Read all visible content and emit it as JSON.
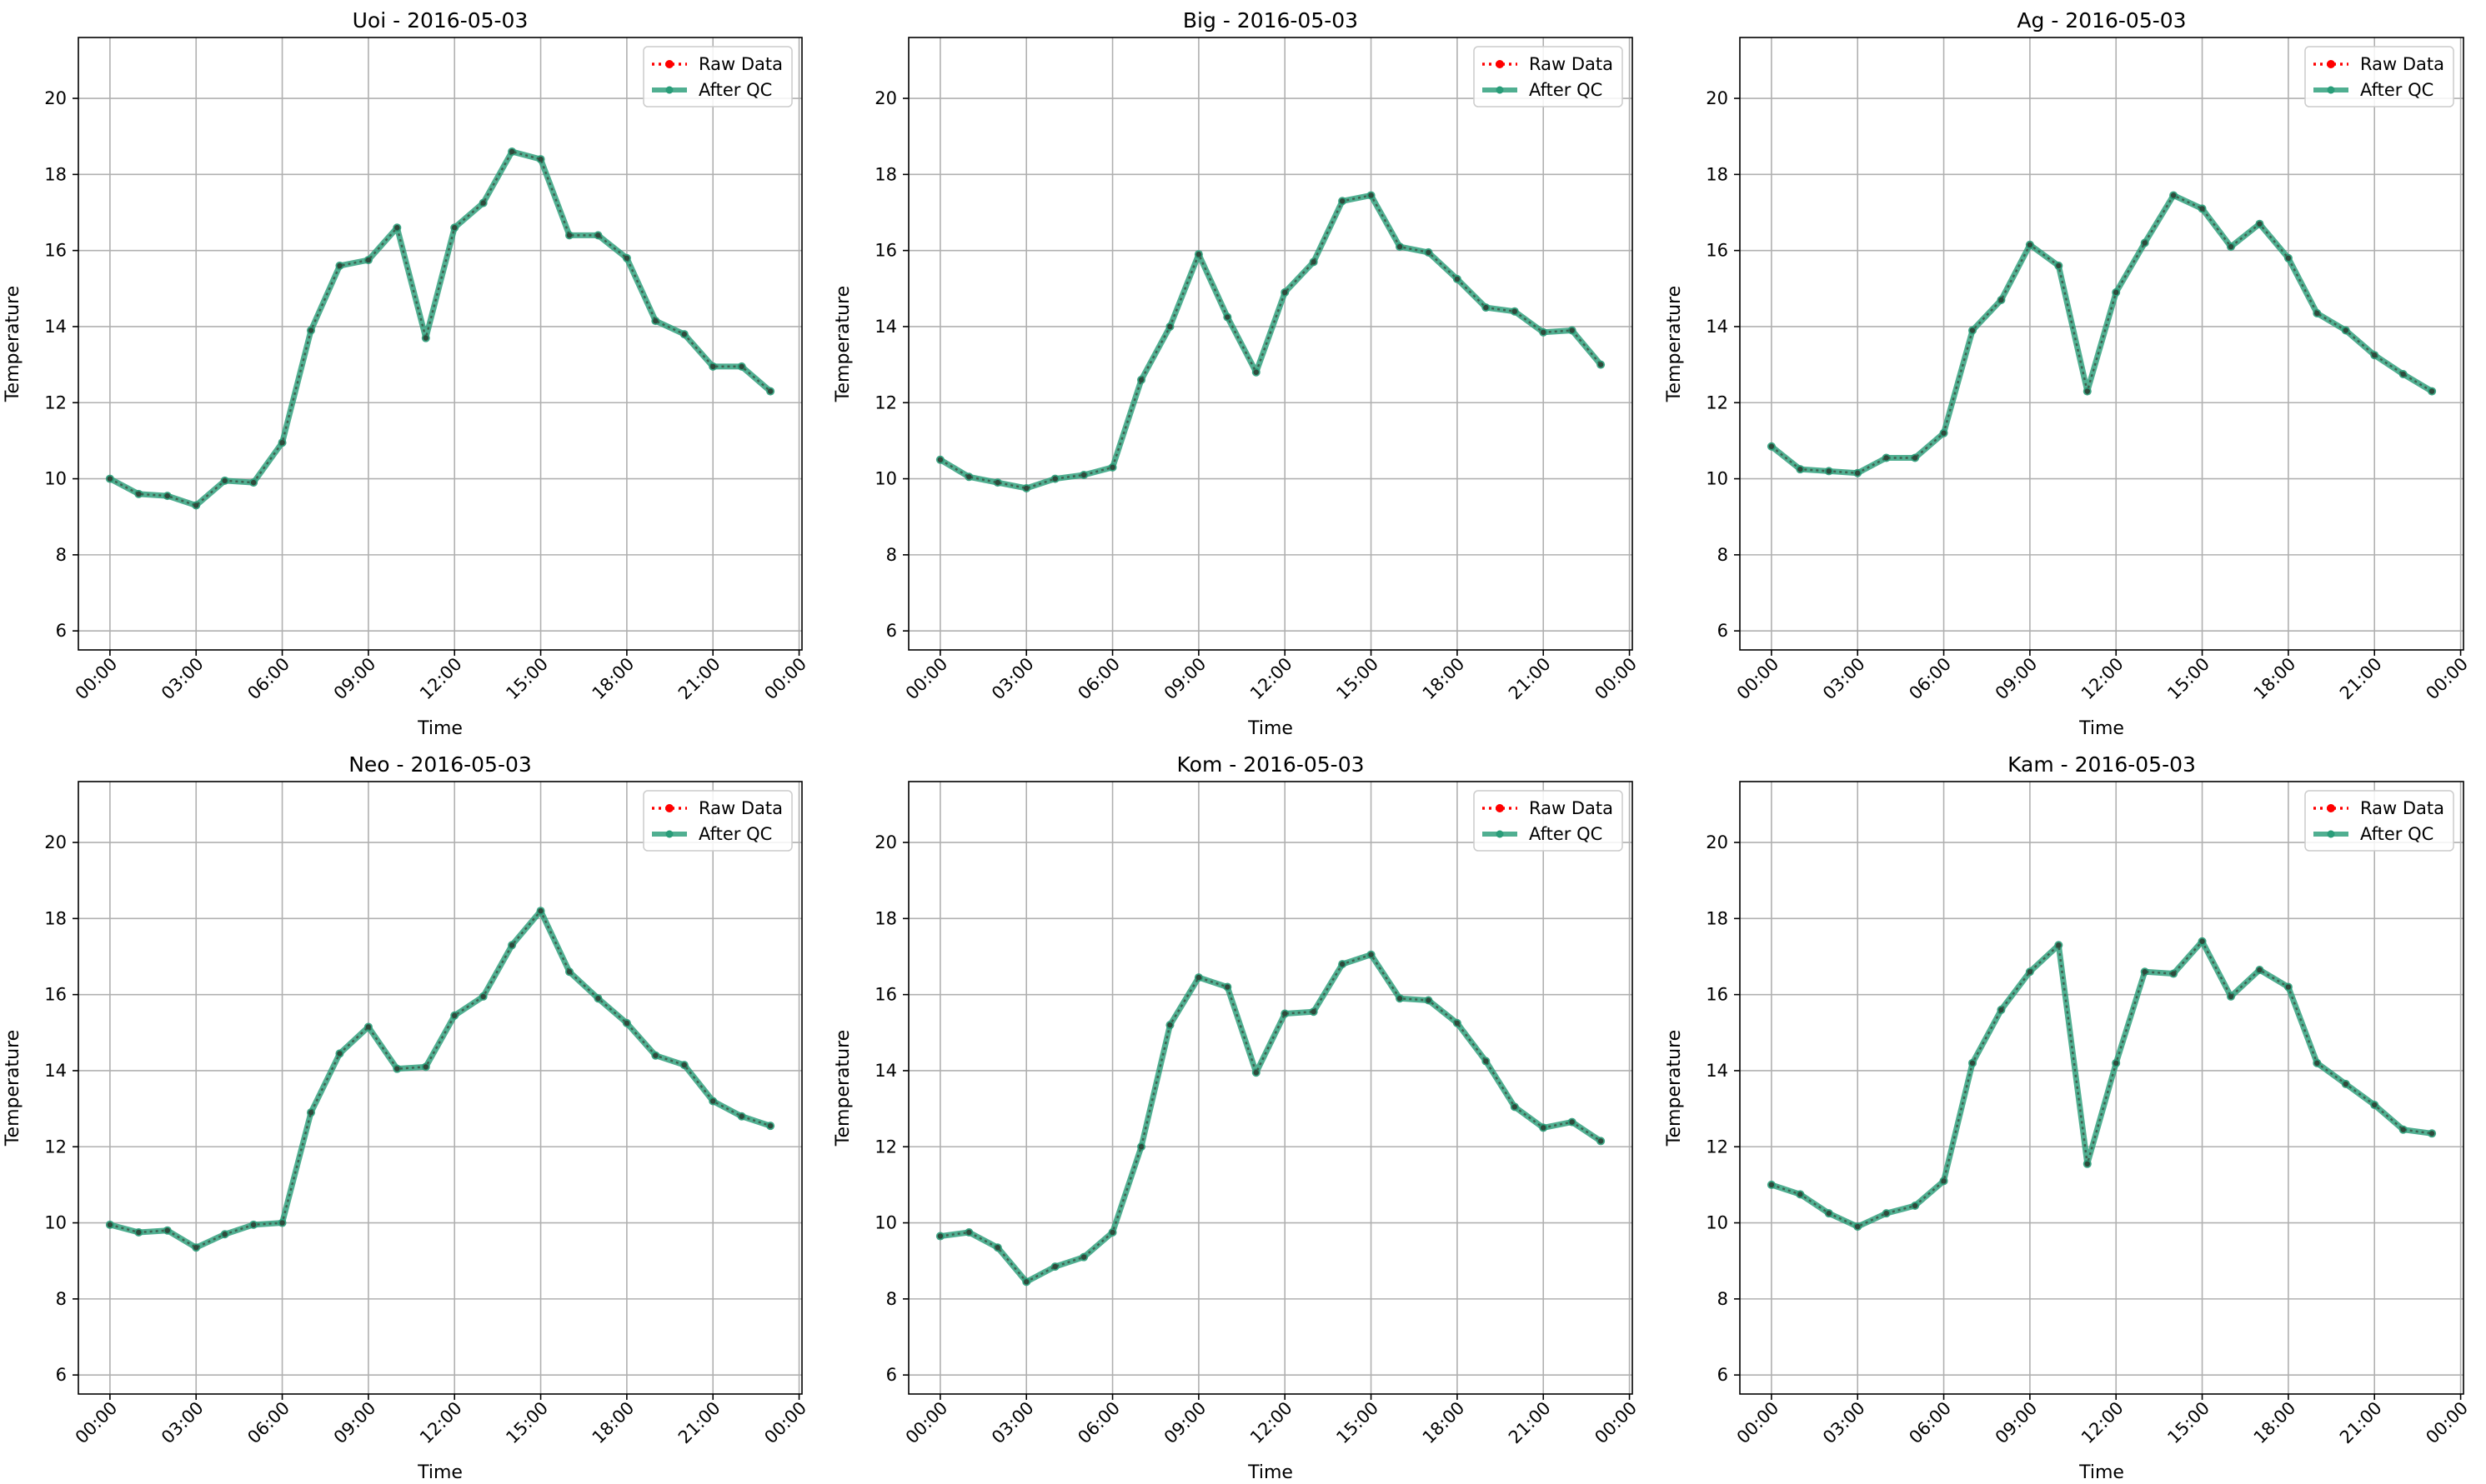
{
  "chart_data": [
    {
      "type": "line",
      "title": "Uoi - 2016-05-03",
      "xlabel": "Time",
      "ylabel": "Temperature",
      "x_ticks": [
        "00:00",
        "03:00",
        "06:00",
        "09:00",
        "12:00",
        "15:00",
        "18:00",
        "21:00",
        "00:00"
      ],
      "y_ticks": [
        6,
        8,
        10,
        12,
        14,
        16,
        18,
        20
      ],
      "ylim": [
        5.5,
        21.6
      ],
      "xlim_hours": [
        -1.1,
        24.1
      ],
      "legend": {
        "position": "top-right",
        "entries": [
          "Raw Data",
          "After QC"
        ]
      },
      "series": [
        {
          "name": "Raw Data",
          "color": "#ff0000",
          "values": [
            10.0,
            9.6,
            9.55,
            9.3,
            9.95,
            9.9,
            10.95,
            13.9,
            15.6,
            15.75,
            16.6,
            13.7,
            16.6,
            17.25,
            18.6,
            18.4,
            16.4,
            16.4,
            15.8,
            14.15,
            13.8,
            12.95,
            12.95,
            12.3
          ]
        },
        {
          "name": "After QC",
          "color": "#2a9d79",
          "values": [
            10.0,
            9.6,
            9.55,
            9.3,
            9.95,
            9.9,
            10.95,
            13.9,
            15.6,
            15.75,
            16.6,
            13.7,
            16.6,
            17.25,
            18.6,
            18.4,
            16.4,
            16.4,
            15.8,
            14.15,
            13.8,
            12.95,
            12.95,
            12.3
          ]
        }
      ]
    },
    {
      "type": "line",
      "title": "Big - 2016-05-03",
      "xlabel": "Time",
      "ylabel": "Temperature",
      "x_ticks": [
        "00:00",
        "03:00",
        "06:00",
        "09:00",
        "12:00",
        "15:00",
        "18:00",
        "21:00",
        "00:00"
      ],
      "y_ticks": [
        6,
        8,
        10,
        12,
        14,
        16,
        18,
        20
      ],
      "ylim": [
        5.5,
        21.6
      ],
      "xlim_hours": [
        -1.1,
        24.1
      ],
      "legend": {
        "position": "top-right",
        "entries": [
          "Raw Data",
          "After QC"
        ]
      },
      "series": [
        {
          "name": "Raw Data",
          "color": "#ff0000",
          "values": [
            10.5,
            10.05,
            9.9,
            9.75,
            10.0,
            10.1,
            10.3,
            12.6,
            14.0,
            15.9,
            14.25,
            12.8,
            14.9,
            15.7,
            17.3,
            17.45,
            16.1,
            15.95,
            15.25,
            14.5,
            14.4,
            13.85,
            13.9,
            13.0
          ]
        },
        {
          "name": "After QC",
          "color": "#2a9d79",
          "values": [
            10.5,
            10.05,
            9.9,
            9.75,
            10.0,
            10.1,
            10.3,
            12.6,
            14.0,
            15.9,
            14.25,
            12.8,
            14.9,
            15.7,
            17.3,
            17.45,
            16.1,
            15.95,
            15.25,
            14.5,
            14.4,
            13.85,
            13.9,
            13.0
          ]
        }
      ]
    },
    {
      "type": "line",
      "title": "Ag - 2016-05-03",
      "xlabel": "Time",
      "ylabel": "Temperature",
      "x_ticks": [
        "00:00",
        "03:00",
        "06:00",
        "09:00",
        "12:00",
        "15:00",
        "18:00",
        "21:00",
        "00:00"
      ],
      "y_ticks": [
        6,
        8,
        10,
        12,
        14,
        16,
        18,
        20
      ],
      "ylim": [
        5.5,
        21.6
      ],
      "xlim_hours": [
        -1.1,
        24.1
      ],
      "legend": {
        "position": "top-right",
        "entries": [
          "Raw Data",
          "After QC"
        ]
      },
      "series": [
        {
          "name": "Raw Data",
          "color": "#ff0000",
          "values": [
            10.85,
            10.25,
            10.2,
            10.15,
            10.55,
            10.55,
            11.2,
            13.9,
            14.7,
            16.15,
            15.6,
            12.3,
            14.9,
            16.2,
            17.45,
            17.1,
            16.1,
            16.7,
            15.8,
            14.35,
            13.9,
            13.25,
            12.75,
            12.3
          ]
        },
        {
          "name": "After QC",
          "color": "#2a9d79",
          "values": [
            10.85,
            10.25,
            10.2,
            10.15,
            10.55,
            10.55,
            11.2,
            13.9,
            14.7,
            16.15,
            15.6,
            12.3,
            14.9,
            16.2,
            17.45,
            17.1,
            16.1,
            16.7,
            15.8,
            14.35,
            13.9,
            13.25,
            12.75,
            12.3
          ]
        }
      ]
    },
    {
      "type": "line",
      "title": "Neo - 2016-05-03",
      "xlabel": "Time",
      "ylabel": "Temperature",
      "x_ticks": [
        "00:00",
        "03:00",
        "06:00",
        "09:00",
        "12:00",
        "15:00",
        "18:00",
        "21:00",
        "00:00"
      ],
      "y_ticks": [
        6,
        8,
        10,
        12,
        14,
        16,
        18,
        20
      ],
      "ylim": [
        5.5,
        21.6
      ],
      "xlim_hours": [
        -1.1,
        24.1
      ],
      "legend": {
        "position": "top-right",
        "entries": [
          "Raw Data",
          "After QC"
        ]
      },
      "series": [
        {
          "name": "Raw Data",
          "color": "#ff0000",
          "values": [
            9.95,
            9.75,
            9.8,
            9.35,
            9.7,
            9.95,
            10.0,
            12.9,
            14.45,
            15.15,
            14.05,
            14.1,
            15.45,
            15.95,
            17.3,
            18.2,
            16.6,
            15.9,
            15.25,
            14.4,
            14.15,
            13.2,
            12.8,
            12.55
          ]
        },
        {
          "name": "After QC",
          "color": "#2a9d79",
          "values": [
            9.95,
            9.75,
            9.8,
            9.35,
            9.7,
            9.95,
            10.0,
            12.9,
            14.45,
            15.15,
            14.05,
            14.1,
            15.45,
            15.95,
            17.3,
            18.2,
            16.6,
            15.9,
            15.25,
            14.4,
            14.15,
            13.2,
            12.8,
            12.55
          ]
        }
      ]
    },
    {
      "type": "line",
      "title": "Kom - 2016-05-03",
      "xlabel": "Time",
      "ylabel": "Temperature",
      "x_ticks": [
        "00:00",
        "03:00",
        "06:00",
        "09:00",
        "12:00",
        "15:00",
        "18:00",
        "21:00",
        "00:00"
      ],
      "y_ticks": [
        6,
        8,
        10,
        12,
        14,
        16,
        18,
        20
      ],
      "ylim": [
        5.5,
        21.6
      ],
      "xlim_hours": [
        -1.1,
        24.1
      ],
      "legend": {
        "position": "top-right",
        "entries": [
          "Raw Data",
          "After QC"
        ]
      },
      "series": [
        {
          "name": "Raw Data",
          "color": "#ff0000",
          "values": [
            9.65,
            9.75,
            9.35,
            8.45,
            8.85,
            9.1,
            9.75,
            12.0,
            15.2,
            16.45,
            16.2,
            13.95,
            15.5,
            15.55,
            16.8,
            17.05,
            15.9,
            15.85,
            15.25,
            14.25,
            13.05,
            12.5,
            12.65,
            12.15
          ]
        },
        {
          "name": "After QC",
          "color": "#2a9d79",
          "values": [
            9.65,
            9.75,
            9.35,
            8.45,
            8.85,
            9.1,
            9.75,
            12.0,
            15.2,
            16.45,
            16.2,
            13.95,
            15.5,
            15.55,
            16.8,
            17.05,
            15.9,
            15.85,
            15.25,
            14.25,
            13.05,
            12.5,
            12.65,
            12.15
          ]
        }
      ]
    },
    {
      "type": "line",
      "title": "Kam - 2016-05-03",
      "xlabel": "Time",
      "ylabel": "Temperature",
      "x_ticks": [
        "00:00",
        "03:00",
        "06:00",
        "09:00",
        "12:00",
        "15:00",
        "18:00",
        "21:00",
        "00:00"
      ],
      "y_ticks": [
        6,
        8,
        10,
        12,
        14,
        16,
        18,
        20
      ],
      "ylim": [
        5.5,
        21.6
      ],
      "xlim_hours": [
        -1.1,
        24.1
      ],
      "legend": {
        "position": "top-right",
        "entries": [
          "Raw Data",
          "After QC"
        ]
      },
      "series": [
        {
          "name": "Raw Data",
          "color": "#ff0000",
          "values": [
            11.0,
            10.75,
            10.25,
            9.9,
            10.25,
            10.45,
            11.1,
            14.2,
            15.6,
            16.6,
            17.3,
            11.55,
            14.2,
            16.6,
            16.55,
            17.4,
            15.95,
            16.65,
            16.2,
            14.2,
            13.65,
            13.1,
            12.45,
            12.35
          ]
        },
        {
          "name": "After QC",
          "color": "#2a9d79",
          "values": [
            11.0,
            10.75,
            10.25,
            9.9,
            10.25,
            10.45,
            11.1,
            14.2,
            15.6,
            16.6,
            17.3,
            11.55,
            14.2,
            16.6,
            16.55,
            17.4,
            15.95,
            16.65,
            16.2,
            14.2,
            13.65,
            13.1,
            12.45,
            12.35
          ]
        }
      ]
    }
  ]
}
